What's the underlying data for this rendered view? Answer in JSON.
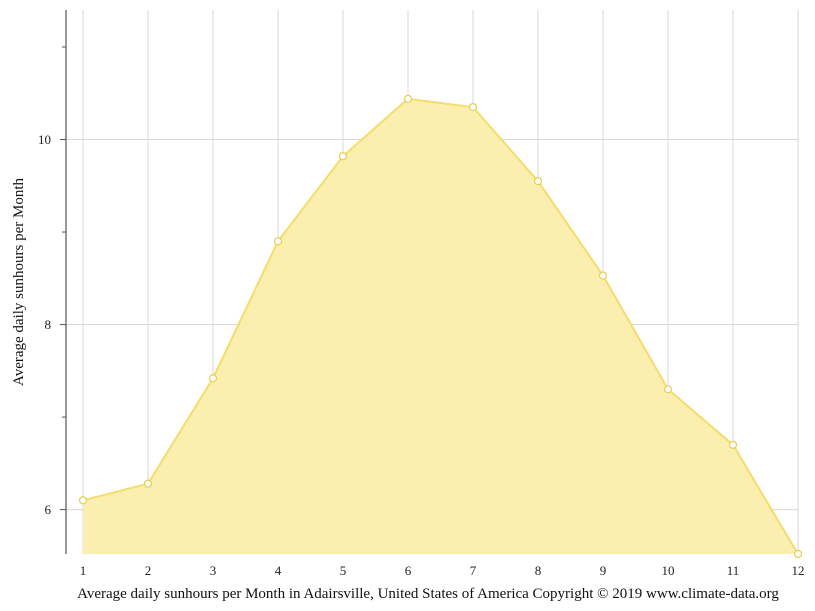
{
  "chart_data": {
    "type": "area",
    "title": "",
    "caption": "Average daily sunhours per Month in Adairsville, United States of America Copyright © 2019 www.climate-data.org",
    "xlabel": "",
    "ylabel": "Average daily sunhours per Month",
    "x": [
      1,
      2,
      3,
      4,
      5,
      6,
      7,
      8,
      9,
      10,
      11,
      12
    ],
    "x_tick_labels": [
      "1",
      "2",
      "3",
      "4",
      "5",
      "6",
      "7",
      "8",
      "9",
      "10",
      "11",
      "12"
    ],
    "y_tick_labels": [
      "6",
      "8",
      "10"
    ],
    "y_ticks": [
      6,
      8,
      10
    ],
    "y_minor_ticks": [
      7,
      9,
      11
    ],
    "ylim": [
      5.52,
      11.4
    ],
    "xlim": [
      1,
      12
    ],
    "grid": true,
    "series": [
      {
        "values": [
          6.1,
          6.28,
          7.42,
          8.9,
          9.82,
          10.44,
          10.35,
          9.55,
          8.53,
          7.3,
          6.7,
          5.52
        ],
        "color": "#f5dc6b",
        "fill": "#faeeaa"
      }
    ]
  }
}
